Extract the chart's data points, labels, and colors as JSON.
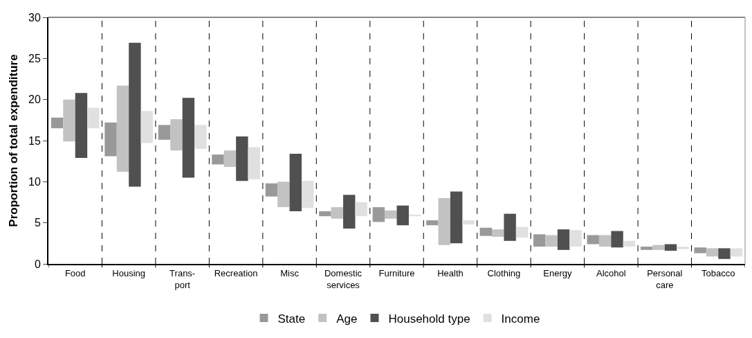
{
  "chart_data": {
    "type": "bar",
    "ylabel": "Proportion of total expenditure",
    "categories": [
      "Food",
      "Housing",
      "Trans-port",
      "Recreation",
      "Misc",
      "Domestic services",
      "Furniture",
      "Health",
      "Clothing",
      "Energy",
      "Alcohol",
      "Personal care",
      "Tobacco"
    ],
    "series": [
      {
        "name": "State",
        "color": "#999999",
        "base": [
          16.5,
          13.1,
          15.1,
          12.1,
          8.2,
          5.8,
          5.1,
          4.7,
          3.4,
          2.1,
          2.4,
          1.7,
          1.3
        ],
        "values": [
          1.3,
          4.1,
          1.8,
          1.2,
          1.6,
          0.6,
          1.8,
          0.6,
          1.0,
          1.5,
          1.1,
          0.4,
          0.7
        ]
      },
      {
        "name": "Age",
        "color": "#c2c2c2",
        "base": [
          14.9,
          11.2,
          13.8,
          11.8,
          6.9,
          5.5,
          5.5,
          2.3,
          3.3,
          2.1,
          2.1,
          1.7,
          0.9
        ],
        "values": [
          5.1,
          10.5,
          3.8,
          2.0,
          3.1,
          1.4,
          1.0,
          5.7,
          0.9,
          1.4,
          1.4,
          0.6,
          1.0
        ]
      },
      {
        "name": "Household type",
        "color": "#505050",
        "base": [
          12.9,
          9.4,
          10.5,
          10.1,
          6.4,
          4.3,
          4.7,
          2.5,
          2.8,
          1.7,
          2.0,
          1.6,
          0.6
        ],
        "values": [
          7.9,
          17.5,
          9.7,
          5.4,
          7.0,
          4.1,
          2.4,
          6.3,
          3.3,
          2.5,
          2.0,
          0.8,
          1.3
        ]
      },
      {
        "name": "Income",
        "color": "#e0e0e0",
        "base": [
          16.5,
          14.7,
          14.0,
          10.3,
          6.8,
          5.8,
          5.8,
          4.8,
          3.2,
          2.1,
          2.1,
          1.8,
          0.9
        ],
        "values": [
          2.5,
          3.9,
          2.9,
          3.9,
          3.3,
          1.7,
          0.2,
          0.5,
          1.3,
          2.0,
          0.7,
          0.3,
          1.0
        ]
      }
    ],
    "ylim": [
      0,
      30
    ],
    "yticks": [
      0,
      5,
      10,
      15,
      20,
      25,
      30
    ],
    "grid": "x",
    "legend": "bottom"
  }
}
